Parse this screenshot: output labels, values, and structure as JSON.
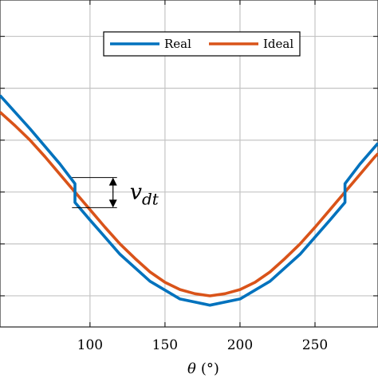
{
  "chart_data": {
    "type": "line",
    "xlabel_symbol": "θ",
    "xlabel_unit": "(°)",
    "xlim": [
      40,
      292
    ],
    "ylim": [
      -1.3,
      1.85
    ],
    "x_ticks": [
      100,
      150,
      200,
      250
    ],
    "y_gridlines": [
      -1.0,
      -0.5,
      0.0,
      0.5,
      1.0,
      1.5
    ],
    "grid": true,
    "legend_position": "top-right",
    "series": [
      {
        "name": "Real",
        "color": "#0072BD",
        "x": [
          40,
          60,
          80,
          90,
          90,
          100,
          120,
          140,
          160,
          180,
          200,
          220,
          240,
          260,
          270,
          270,
          280,
          292
        ],
        "y": [
          0.93,
          0.61,
          0.27,
          0.08,
          -0.1,
          -0.27,
          -0.6,
          -0.86,
          -1.03,
          -1.09,
          -1.03,
          -0.86,
          -0.6,
          -0.27,
          -0.1,
          0.08,
          0.27,
          0.47
        ]
      },
      {
        "name": "Ideal",
        "color": "#D95319",
        "x": [
          40,
          50,
          60,
          70,
          80,
          90,
          100,
          110,
          120,
          130,
          140,
          150,
          160,
          170,
          180,
          190,
          200,
          210,
          220,
          230,
          240,
          250,
          260,
          270,
          280,
          290,
          292
        ],
        "y": [
          0.77,
          0.64,
          0.5,
          0.34,
          0.17,
          0.0,
          -0.17,
          -0.34,
          -0.5,
          -0.64,
          -0.77,
          -0.87,
          -0.94,
          -0.98,
          -1.0,
          -0.98,
          -0.94,
          -0.87,
          -0.77,
          -0.64,
          -0.5,
          -0.34,
          -0.17,
          0.0,
          0.17,
          0.34,
          0.37
        ]
      }
    ],
    "annotation": {
      "text_main": "v",
      "text_sub": "dt",
      "x_from": 88,
      "x_to": 118,
      "y_top": 0.14,
      "y_bottom": -0.15
    }
  }
}
